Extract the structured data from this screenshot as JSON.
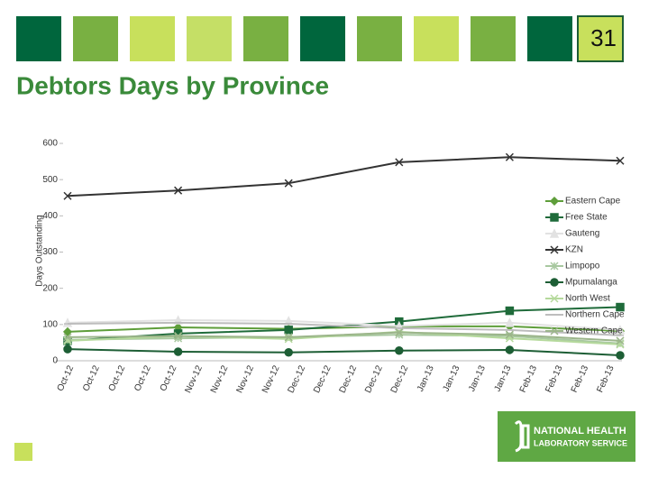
{
  "page_number": "31",
  "title": "Debtors Days by Province",
  "logo": {
    "line1": "NATIONAL HEALTH",
    "line2": "LABORATORY SERVICE"
  },
  "chart_data": {
    "type": "line",
    "y_label": "Days Outstanding",
    "ylim": [
      0,
      600
    ],
    "yticks": [
      0,
      100,
      200,
      300,
      400,
      500,
      600
    ],
    "grid": false,
    "legend": "right",
    "x_tick_labels": [
      "Oct-12",
      "Oct-12",
      "Oct-12",
      "Oct-12",
      "Oct-12",
      "Nov-12",
      "Nov-12",
      "Nov-12",
      "Nov-12",
      "Dec-12",
      "Dec-12",
      "Dec-12",
      "Dec-12",
      "Dec-12",
      "Jan-13",
      "Jan-13",
      "Jan-13",
      "Jan-13",
      "Feb-13",
      "Feb-13",
      "Feb-13",
      "Feb-13"
    ],
    "series": [
      {
        "name": "Eastern Cape",
        "color": "#5e9e3a",
        "marker": "diamond",
        "values": [
          80,
          92,
          88,
          95,
          95,
          82
        ]
      },
      {
        "name": "Free State",
        "color": "#1f6b3a",
        "marker": "square",
        "values": [
          55,
          75,
          85,
          108,
          138,
          148
        ]
      },
      {
        "name": "Gauteng",
        "color": "#e2e2e2",
        "marker": "triangle",
        "values": [
          105,
          112,
          110,
          96,
          105,
          85
        ]
      },
      {
        "name": "KZN",
        "color": "#333333",
        "marker": "x",
        "values": [
          455,
          470,
          490,
          548,
          562,
          552
        ]
      },
      {
        "name": "Limpopo",
        "color": "#a8c8a0",
        "marker": "star",
        "values": [
          58,
          62,
          65,
          72,
          68,
          48
        ]
      },
      {
        "name": "Mpumalanga",
        "color": "#1d5e35",
        "marker": "circle",
        "values": [
          32,
          25,
          23,
          28,
          30,
          15
        ]
      },
      {
        "name": "North West",
        "color": "#b5d99c",
        "marker": "x",
        "values": [
          55,
          68,
          60,
          80,
          62,
          45
        ]
      },
      {
        "name": "Northern Cape",
        "color": "#bdbdbd",
        "marker": "dash",
        "values": [
          102,
          105,
          102,
          90,
          85,
          70
        ]
      },
      {
        "name": "Western Cape",
        "color": "#9bb58a",
        "marker": "x",
        "values": [
          65,
          68,
          65,
          78,
          72,
          55
        ]
      }
    ]
  }
}
